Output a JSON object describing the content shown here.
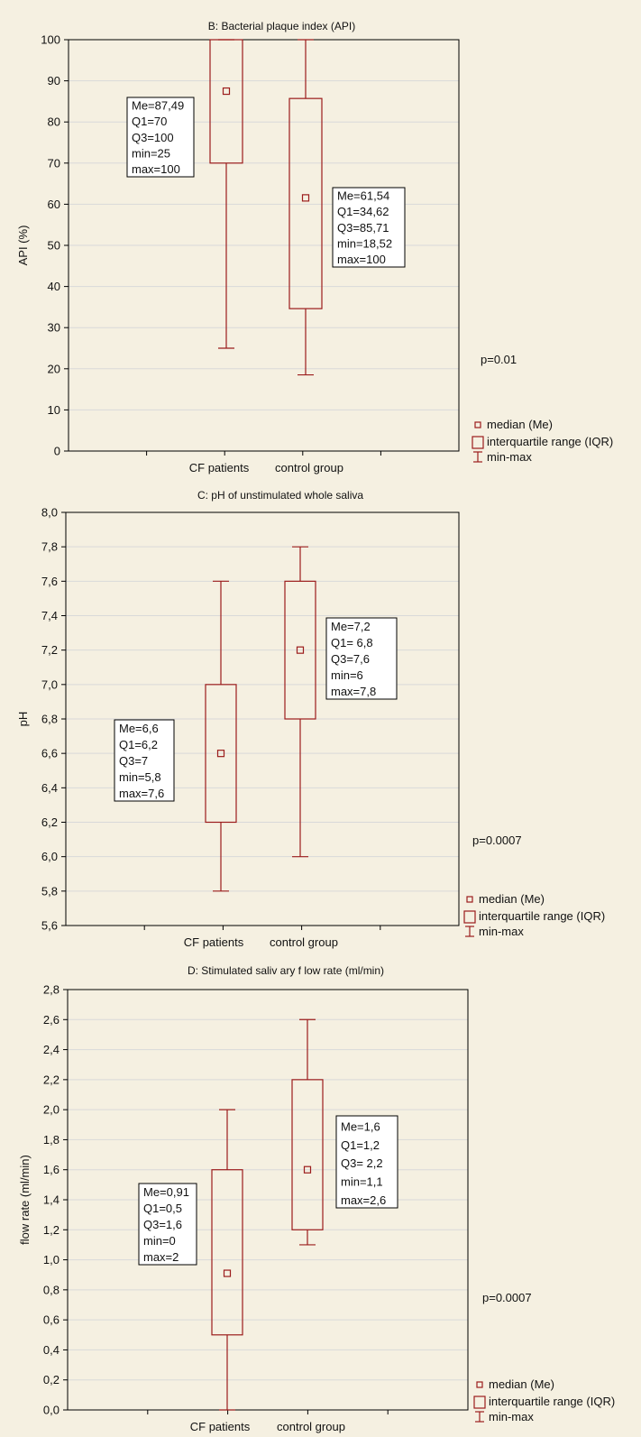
{
  "colors": {
    "background": "#f5f0e1",
    "box": "#9b1c1c",
    "grid": "#d9d9d9",
    "frame": "#000000"
  },
  "legend": {
    "median": "median (Me)",
    "iqr": "interquartile range (IQR)",
    "minmax": "min-max"
  },
  "chart_data": [
    {
      "type": "box",
      "title": "B: Bacterial plaque index (API)",
      "ylabel": "API (%)",
      "xlabel": "",
      "categories": [
        "CF patients",
        "control group"
      ],
      "ylim": [
        0,
        100
      ],
      "yticks": [
        "0",
        "10",
        "20",
        "30",
        "40",
        "50",
        "60",
        "70",
        "80",
        "90",
        "100"
      ],
      "grid": true,
      "pvalue": "p=0.01",
      "series": [
        {
          "median": 87.49,
          "q1": 70,
          "q3": 100,
          "min": 25,
          "max": 100,
          "annotation": [
            "Me=87,49",
            "Q1=70",
            "Q3=100",
            "min=25",
            "max=100"
          ]
        },
        {
          "median": 61.54,
          "q1": 34.62,
          "q3": 85.71,
          "min": 18.52,
          "max": 100,
          "annotation": [
            "Me=61,54",
            "Q1=34,62",
            "Q3=85,71",
            "min=18,52",
            "max=100"
          ]
        }
      ]
    },
    {
      "type": "box",
      "title": "C: pH of unstimulated whole saliva",
      "ylabel": "pH",
      "xlabel": "",
      "categories": [
        "CF patients",
        "control group"
      ],
      "ylim": [
        5.6,
        8.0
      ],
      "yticks": [
        "5,6",
        "5,8",
        "6,0",
        "6,2",
        "6,4",
        "6,6",
        "6,8",
        "7,0",
        "7,2",
        "7,4",
        "7,6",
        "7,8",
        "8,0"
      ],
      "grid": true,
      "pvalue": "p=0.0007",
      "series": [
        {
          "median": 6.6,
          "q1": 6.2,
          "q3": 7.0,
          "min": 5.8,
          "max": 7.6,
          "annotation": [
            "Me=6,6",
            "Q1=6,2",
            "Q3=7",
            "min=5,8",
            "max=7,6"
          ]
        },
        {
          "median": 7.2,
          "q1": 6.8,
          "q3": 7.6,
          "min": 6.0,
          "max": 7.8,
          "annotation": [
            "Me=7,2",
            "Q1= 6,8",
            "Q3=7,6",
            "min=6",
            "max=7,8"
          ]
        }
      ]
    },
    {
      "type": "box",
      "title": "D: Stimulated saliv ary f low rate (ml/min)",
      "ylabel": "flow rate (ml/min)",
      "xlabel": "",
      "categories": [
        "CF patients",
        "control group"
      ],
      "ylim": [
        0,
        2.8
      ],
      "yticks": [
        "0,0",
        "0,2",
        "0,4",
        "0,6",
        "0,8",
        "1,0",
        "1,2",
        "1,4",
        "1,6",
        "1,8",
        "2,0",
        "2,2",
        "2,4",
        "2,6",
        "2,8"
      ],
      "grid": true,
      "pvalue": "p=0.0007",
      "series": [
        {
          "median": 0.91,
          "q1": 0.5,
          "q3": 1.6,
          "min": 0,
          "max": 2.0,
          "annotation": [
            "Me=0,91",
            "Q1=0,5",
            "Q3=1,6",
            "min=0",
            "max=2"
          ]
        },
        {
          "median": 1.6,
          "q1": 1.2,
          "q3": 2.2,
          "min": 1.1,
          "max": 2.6,
          "annotation": [
            "Me=1,6",
            "Q1=1,2",
            "Q3= 2,2",
            "min=1,1",
            "max=2,6"
          ]
        }
      ]
    }
  ]
}
